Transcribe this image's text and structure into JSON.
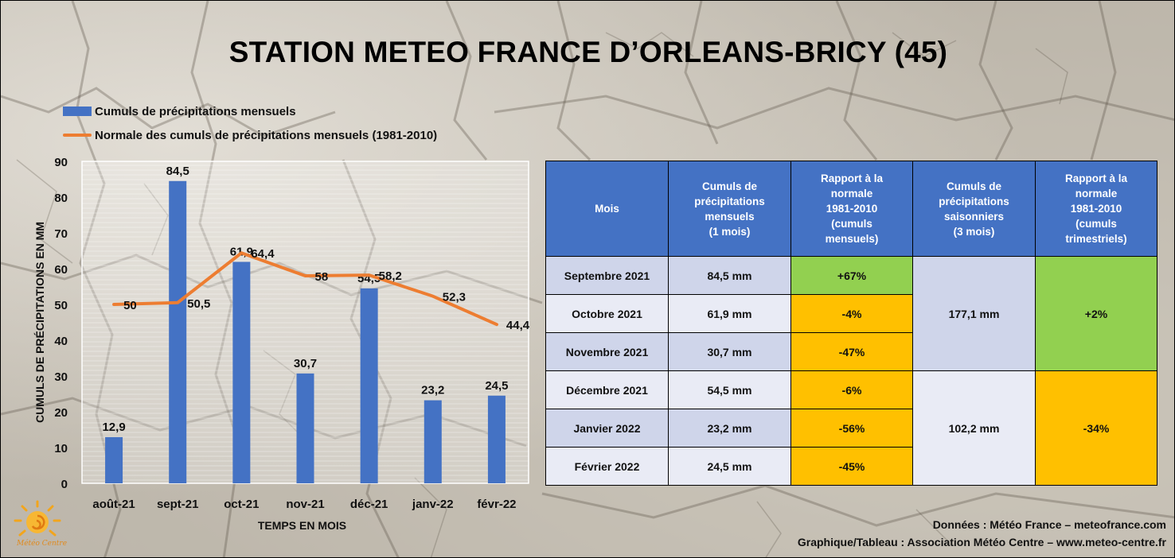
{
  "title": "STATION METEO FRANCE D’ORLEANS-BRICY (45)",
  "legend": {
    "bar_label": "Cumuls de précipitations mensuels",
    "line_label": "Normale des cumuls de précipitations mensuels (1981-2010)"
  },
  "colors": {
    "bar": "#4472c4",
    "line": "#ed7d31",
    "header": "#4472c4",
    "green": "#92d050",
    "orange": "#ffc000"
  },
  "chart_data": {
    "type": "bar",
    "categories": [
      "août-21",
      "sept-21",
      "oct-21",
      "nov-21",
      "déc-21",
      "janv-22",
      "févr-22"
    ],
    "series": [
      {
        "name": "Cumuls de précipitations mensuels",
        "type": "bar",
        "values": [
          12.9,
          84.5,
          61.9,
          30.7,
          54.5,
          23.2,
          24.5
        ],
        "labels": [
          "12,9",
          "84,5",
          "61,9",
          "30,7",
          "54,5",
          "23,2",
          "24,5"
        ]
      },
      {
        "name": "Normale des cumuls de précipitations mensuels (1981-2010)",
        "type": "line",
        "values": [
          50,
          50.5,
          64.4,
          58,
          58.2,
          52.3,
          44.4
        ],
        "labels": [
          "50",
          "50,5",
          "64,4",
          "58",
          "58,2",
          "52,3",
          "44,4"
        ]
      }
    ],
    "xlabel": "TEMPS EN MOIS",
    "ylabel": "CUMULS DE PRÉCIPITATIONS EN MM",
    "ylim": [
      0,
      90
    ],
    "yticks": [
      0,
      10,
      20,
      30,
      40,
      50,
      60,
      70,
      80,
      90
    ]
  },
  "table": {
    "headers": [
      "Mois",
      "Cumuls de précipitations mensuels (1 mois)",
      "Rapport à la normale 1981-2010 (cumuls mensuels)",
      "Cumuls de précipitations saisonniers (3 mois)",
      "Rapport à la normale 1981-2010 (cumuls trimestriels)"
    ],
    "header_lines": [
      [
        "Mois"
      ],
      [
        "Cumuls de",
        "précipitations",
        "mensuels",
        "(1 mois)"
      ],
      [
        "Rapport à la",
        "normale",
        "1981-2010",
        "(cumuls",
        "mensuels)"
      ],
      [
        "Cumuls de",
        "précipitations",
        "saisonniers",
        "(3 mois)"
      ],
      [
        "Rapport à la",
        "normale",
        "1981-2010",
        "(cumuls",
        "trimestriels)"
      ]
    ],
    "rows": [
      {
        "mois": "Septembre 2021",
        "cumul": "84,5 mm",
        "rapport": "+67%"
      },
      {
        "mois": "Octobre 2021",
        "cumul": "61,9 mm",
        "rapport": "-4%"
      },
      {
        "mois": "Novembre 2021",
        "cumul": "30,7 mm",
        "rapport": "-47%"
      },
      {
        "mois": "Décembre 2021",
        "cumul": "54,5 mm",
        "rapport": "-6%"
      },
      {
        "mois": "Janvier 2022",
        "cumul": "23,2 mm",
        "rapport": "-56%"
      },
      {
        "mois": "Février 2022",
        "cumul": "24,5 mm",
        "rapport": "-45%"
      }
    ],
    "seasons": [
      {
        "cumul": "177,1 mm",
        "rapport": "+2%"
      },
      {
        "cumul": "102,2 mm",
        "rapport": "-34%"
      }
    ]
  },
  "footer": {
    "line1": "Données : Météo France – meteofrance.com",
    "line2": "Graphique/Tableau : Association Météo Centre – www.meteo-centre.fr"
  },
  "logo": {
    "text": "Météo Centre",
    "icon": "sun-logo-icon"
  }
}
